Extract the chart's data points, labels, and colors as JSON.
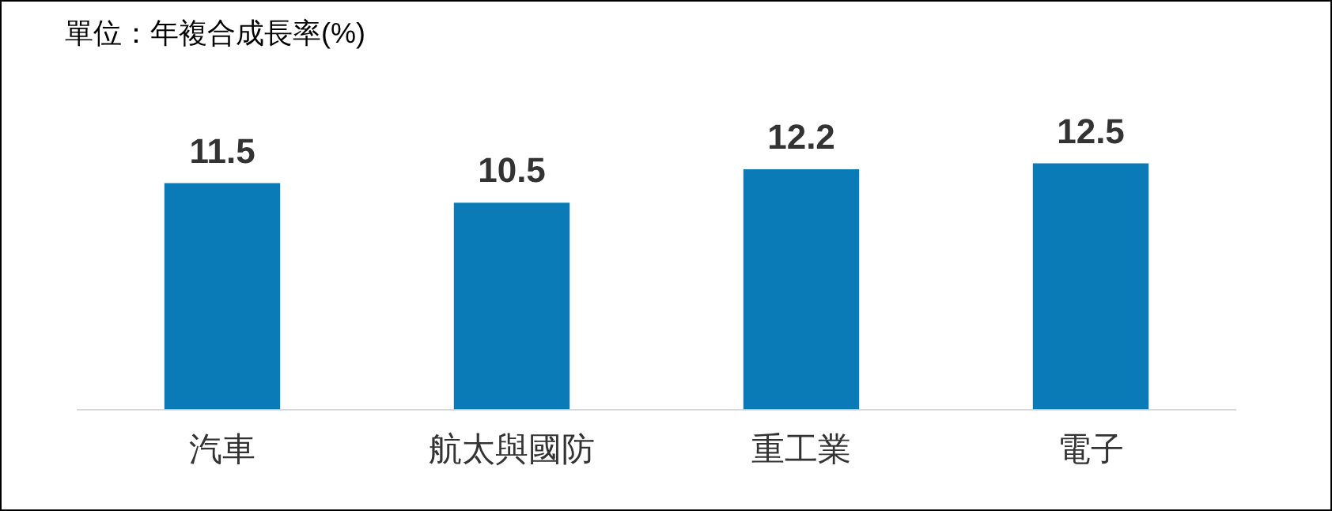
{
  "chart_data": {
    "type": "bar",
    "title": "單位：年複合成長率(%)",
    "categories": [
      "汽車",
      "航太與國防",
      "重工業",
      "電子"
    ],
    "values": [
      11.5,
      10.5,
      12.2,
      12.5
    ],
    "color": "#0a7bb6",
    "tick_labels": "x",
    "data_labels": true,
    "grid": false,
    "legend": false
  }
}
